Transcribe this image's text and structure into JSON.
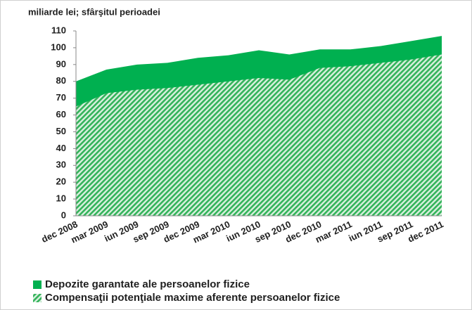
{
  "chart_data": {
    "type": "area",
    "subtitle": "miliarde lei; sfârşitul perioadei",
    "categories": [
      "dec 2008",
      "mar 2009",
      "iun 2009",
      "sep 2009",
      "dec 2009",
      "mar 2010",
      "iun 2010",
      "sep 2010",
      "dec 2010",
      "mar 2011",
      "iun 2011",
      "sep 2011",
      "dec 2011"
    ],
    "series": [
      {
        "name": "Depozite garantate ale persoanelor fizice",
        "color": "#00b050",
        "hatch": false,
        "values": [
          80,
          87,
          90,
          91,
          94,
          95.5,
          98.5,
          96,
          99,
          99,
          101,
          104,
          107
        ]
      },
      {
        "name": "Compensaţii potenţiale maxime aferente persoanelor fizice",
        "color": "#33b35a",
        "hatch": true,
        "values": [
          65,
          73,
          75,
          76,
          78,
          80,
          82,
          81,
          88,
          89,
          91,
          93,
          96
        ]
      }
    ],
    "ylim": [
      0,
      110
    ],
    "yticks": [
      0,
      10,
      20,
      30,
      40,
      50,
      60,
      70,
      80,
      90,
      100,
      110
    ]
  }
}
